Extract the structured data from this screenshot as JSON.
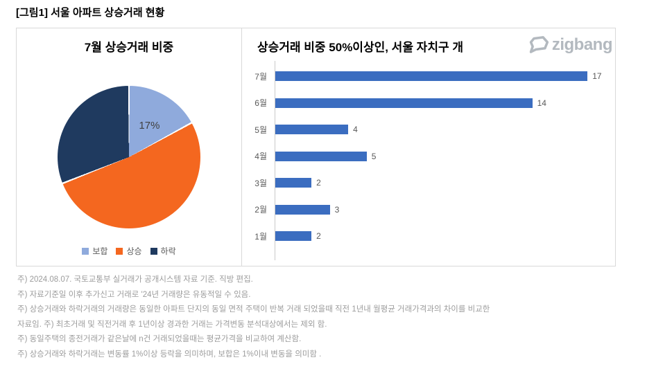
{
  "page": {
    "title": "[그림1] 서울 아파트 상승거래 현황"
  },
  "logo": {
    "text": "zigbang"
  },
  "colors": {
    "pie_flat": "#8FAADC",
    "pie_up": "#F4671F",
    "pie_down": "#1F3A5F",
    "bar_blue": "#3B6DC0",
    "label_grey": "#595959",
    "note_grey": "#9C9C9C",
    "logo_grey": "#B3B9BF",
    "panel_border": "#D9D9D9"
  },
  "chart_data": [
    {
      "type": "pie",
      "title": "7월 상승거래 비중",
      "legend_position": "bottom",
      "slices": [
        {
          "label": "보합",
          "value": 17,
          "color": "#8FAADC",
          "data_label": "17%"
        },
        {
          "label": "상승",
          "value": 52,
          "color": "#F4671F",
          "data_label": ""
        },
        {
          "label": "하락",
          "value": 31,
          "color": "#1F3A5F",
          "data_label": ""
        }
      ],
      "note": "only the 17% slice carries a visible data label; other values estimated from slice angles"
    },
    {
      "type": "bar",
      "orientation": "horizontal",
      "title": "상승거래 비중 50%이상인, 서울 자치구 개",
      "categories": [
        "7월",
        "6월",
        "5월",
        "4월",
        "3월",
        "2월",
        "1월"
      ],
      "values": [
        17,
        14,
        4,
        5,
        2,
        3,
        2
      ],
      "xlim": [
        0,
        18.5
      ],
      "grid": false,
      "value_labels": true,
      "bar_color": "#3B6DC0"
    }
  ],
  "notes": {
    "lines": [
      "주) 2024.08.07. 국토교통부 실거래가 공개시스템 자료 기준. 직방 편집.",
      "주) 자료기준일 이후 추가신고 거래로 '24년 거래량은 유동적일 수 있음.",
      "주) 상승거래와 하락거래의 거래량은 동일한 아파트 단지의 동일 면적 주택이 반복 거래 되었을때 직전 1년내 월평균 거래가격과의 차이를 비교한",
      "자료임. 주)  최초거래 및 직전거래 후 1년이상 경과한 거래는 가격변동 분석대상에서는 제외 함.",
      "주) 동일주택의 종전거래가 같은날에 n건 거래되었을때는 평균가격을 비교하여  계산함.",
      "주) 상승거래와 하락거래는 변동률 1%이상 등락을 의미하며, 보합은 1%이내 변동을 의미함 ."
    ]
  }
}
